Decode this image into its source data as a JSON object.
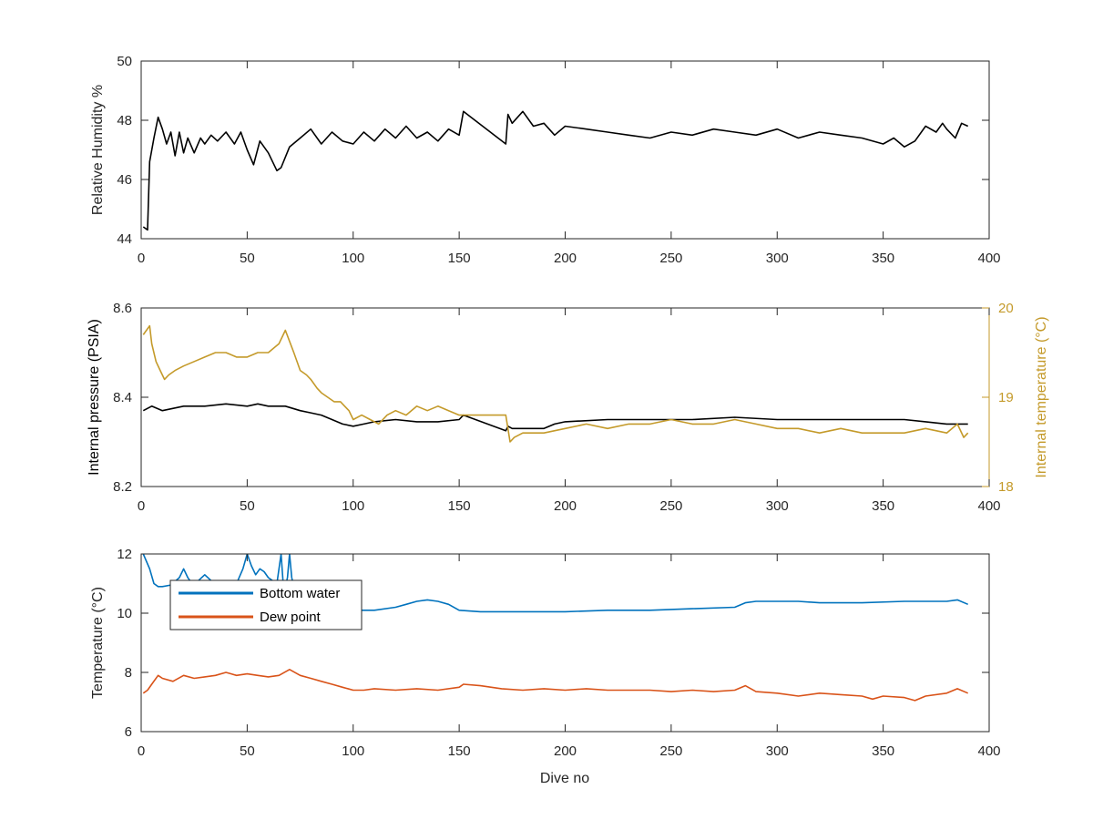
{
  "figure": {
    "background": "#ffffff",
    "axis_color": "#262626"
  },
  "chart_data": [
    {
      "type": "line",
      "ylabel": "Relative Humidity %",
      "xlim": [
        0,
        400
      ],
      "ylim": [
        44,
        50
      ],
      "xticks": [
        "0",
        "50",
        "100",
        "150",
        "200",
        "250",
        "300",
        "350",
        "400"
      ],
      "yticks": [
        "44",
        "46",
        "48",
        "50"
      ],
      "grid": false,
      "series": [
        {
          "color": "#000000",
          "x": [
            1,
            3,
            4,
            6,
            8,
            10,
            12,
            14,
            16,
            18,
            20,
            22,
            25,
            28,
            30,
            33,
            36,
            40,
            44,
            47,
            50,
            53,
            56,
            60,
            64,
            66,
            70,
            75,
            80,
            85,
            90,
            95,
            100,
            105,
            110,
            115,
            120,
            125,
            130,
            135,
            140,
            145,
            150,
            152,
            172,
            173,
            175,
            180,
            185,
            190,
            195,
            200,
            210,
            220,
            230,
            240,
            250,
            260,
            270,
            280,
            290,
            300,
            310,
            320,
            330,
            340,
            350,
            355,
            360,
            365,
            370,
            375,
            378,
            380,
            384,
            387,
            390
          ],
          "y": [
            44.4,
            44.3,
            46.6,
            47.4,
            48.1,
            47.7,
            47.2,
            47.6,
            46.8,
            47.6,
            46.9,
            47.4,
            46.9,
            47.4,
            47.2,
            47.5,
            47.3,
            47.6,
            47.2,
            47.6,
            47.0,
            46.5,
            47.3,
            46.9,
            46.3,
            46.4,
            47.1,
            47.4,
            47.7,
            47.2,
            47.6,
            47.3,
            47.2,
            47.6,
            47.3,
            47.7,
            47.4,
            47.8,
            47.4,
            47.6,
            47.3,
            47.7,
            47.5,
            48.3,
            47.2,
            48.2,
            47.9,
            48.3,
            47.8,
            47.9,
            47.5,
            47.8,
            47.7,
            47.6,
            47.5,
            47.4,
            47.6,
            47.5,
            47.7,
            47.6,
            47.5,
            47.7,
            47.4,
            47.6,
            47.5,
            47.4,
            47.2,
            47.4,
            47.1,
            47.3,
            47.8,
            47.6,
            47.9,
            47.7,
            47.4,
            47.9,
            47.8
          ]
        }
      ]
    },
    {
      "type": "line",
      "ylabel": "Internal pressure (PSIA)",
      "ylabel_right": "Internal temperature (°C)",
      "xlim": [
        0,
        400
      ],
      "ylim": [
        8.2,
        8.6
      ],
      "ylim_right": [
        18,
        20
      ],
      "xticks": [
        "0",
        "50",
        "100",
        "150",
        "200",
        "250",
        "300",
        "350",
        "400"
      ],
      "yticks": [
        "8.2",
        "8.4",
        "8.6"
      ],
      "yticks_right": [
        "18",
        "19",
        "20"
      ],
      "right_axis_color": "#c49a2a",
      "grid": false,
      "series": [
        {
          "axis": "left",
          "color": "#000000",
          "x": [
            1,
            5,
            10,
            20,
            30,
            40,
            50,
            55,
            60,
            68,
            75,
            80,
            85,
            90,
            95,
            100,
            105,
            110,
            120,
            130,
            140,
            150,
            152,
            172,
            173,
            175,
            180,
            190,
            195,
            200,
            220,
            240,
            260,
            280,
            300,
            320,
            340,
            360,
            370,
            380,
            390
          ],
          "y": [
            8.37,
            8.38,
            8.37,
            8.38,
            8.38,
            8.385,
            8.38,
            8.385,
            8.38,
            8.38,
            8.37,
            8.365,
            8.36,
            8.35,
            8.34,
            8.335,
            8.34,
            8.345,
            8.35,
            8.345,
            8.345,
            8.35,
            8.36,
            8.325,
            8.335,
            8.33,
            8.33,
            8.33,
            8.34,
            8.345,
            8.35,
            8.35,
            8.35,
            8.355,
            8.35,
            8.35,
            8.35,
            8.35,
            8.345,
            8.34,
            8.34
          ]
        },
        {
          "axis": "right",
          "color": "#c49a2a",
          "x": [
            1,
            4,
            5,
            7,
            9,
            11,
            13,
            16,
            20,
            25,
            30,
            35,
            40,
            45,
            50,
            55,
            60,
            65,
            68,
            72,
            75,
            78,
            80,
            83,
            85,
            88,
            91,
            94,
            96,
            98,
            100,
            104,
            108,
            112,
            116,
            120,
            125,
            130,
            135,
            140,
            145,
            150,
            152,
            172,
            174,
            176,
            180,
            185,
            190,
            200,
            210,
            220,
            230,
            240,
            250,
            260,
            270,
            280,
            290,
            300,
            310,
            320,
            330,
            340,
            350,
            360,
            370,
            380,
            385,
            388,
            390
          ],
          "y": [
            19.7,
            19.8,
            19.6,
            19.4,
            19.3,
            19.2,
            19.25,
            19.3,
            19.35,
            19.4,
            19.45,
            19.5,
            19.5,
            19.45,
            19.45,
            19.5,
            19.5,
            19.6,
            19.75,
            19.5,
            19.3,
            19.25,
            19.2,
            19.1,
            19.05,
            19.0,
            18.95,
            18.95,
            18.9,
            18.85,
            18.75,
            18.8,
            18.75,
            18.7,
            18.8,
            18.85,
            18.8,
            18.9,
            18.85,
            18.9,
            18.85,
            18.8,
            18.8,
            18.8,
            18.5,
            18.55,
            18.6,
            18.6,
            18.6,
            18.65,
            18.7,
            18.65,
            18.7,
            18.7,
            18.75,
            18.7,
            18.7,
            18.75,
            18.7,
            18.65,
            18.65,
            18.6,
            18.65,
            18.6,
            18.6,
            18.6,
            18.65,
            18.6,
            18.7,
            18.55,
            18.6
          ]
        }
      ]
    },
    {
      "type": "line",
      "xlabel": "Dive no",
      "ylabel": "Temperature (°C)",
      "xlim": [
        0,
        400
      ],
      "ylim": [
        6,
        12
      ],
      "xticks": [
        "0",
        "50",
        "100",
        "150",
        "200",
        "250",
        "300",
        "350",
        "400"
      ],
      "yticks": [
        "6",
        "8",
        "10",
        "12"
      ],
      "legend_position": "top-left",
      "grid": false,
      "series": [
        {
          "name": "Bottom water",
          "color": "#0072bd",
          "x": [
            1,
            4,
            6,
            8,
            10,
            14,
            18,
            20,
            22,
            24,
            27,
            30,
            33,
            36,
            40,
            45,
            48,
            50,
            52,
            54,
            56,
            58,
            60,
            62,
            64,
            66,
            67,
            68,
            69,
            70,
            71,
            72,
            75,
            80,
            85,
            90,
            95,
            100,
            110,
            120,
            125,
            130,
            135,
            140,
            145,
            150,
            160,
            170,
            180,
            190,
            200,
            220,
            240,
            260,
            280,
            285,
            290,
            300,
            310,
            320,
            340,
            360,
            380,
            385,
            390
          ],
          "y": [
            12.0,
            11.5,
            11.0,
            10.9,
            10.9,
            10.95,
            11.2,
            11.5,
            11.2,
            11.0,
            11.1,
            11.3,
            11.1,
            10.95,
            10.9,
            11.0,
            11.5,
            12.0,
            11.6,
            11.3,
            11.5,
            11.4,
            11.2,
            11.1,
            11.0,
            12.0,
            11.0,
            10.9,
            11.2,
            12.0,
            11.2,
            10.9,
            10.6,
            10.4,
            10.3,
            10.2,
            10.15,
            10.1,
            10.1,
            10.2,
            10.3,
            10.4,
            10.45,
            10.4,
            10.3,
            10.1,
            10.05,
            10.05,
            10.05,
            10.05,
            10.05,
            10.1,
            10.1,
            10.15,
            10.2,
            10.35,
            10.4,
            10.4,
            10.4,
            10.35,
            10.35,
            10.4,
            10.4,
            10.45,
            10.3
          ]
        },
        {
          "name": "Dew point",
          "color": "#d95319",
          "x": [
            1,
            3,
            5,
            8,
            10,
            15,
            20,
            25,
            30,
            35,
            40,
            45,
            50,
            55,
            60,
            65,
            70,
            75,
            80,
            85,
            90,
            95,
            100,
            105,
            110,
            120,
            130,
            140,
            150,
            152,
            160,
            170,
            180,
            190,
            200,
            210,
            220,
            230,
            240,
            250,
            260,
            270,
            280,
            285,
            290,
            300,
            310,
            320,
            330,
            340,
            345,
            350,
            360,
            365,
            370,
            380,
            385,
            390
          ],
          "y": [
            7.3,
            7.4,
            7.6,
            7.9,
            7.8,
            7.7,
            7.9,
            7.8,
            7.85,
            7.9,
            8.0,
            7.9,
            7.95,
            7.9,
            7.85,
            7.9,
            8.1,
            7.9,
            7.8,
            7.7,
            7.6,
            7.5,
            7.4,
            7.4,
            7.45,
            7.4,
            7.45,
            7.4,
            7.5,
            7.6,
            7.55,
            7.45,
            7.4,
            7.45,
            7.4,
            7.45,
            7.4,
            7.4,
            7.4,
            7.35,
            7.4,
            7.35,
            7.4,
            7.55,
            7.35,
            7.3,
            7.2,
            7.3,
            7.25,
            7.2,
            7.1,
            7.2,
            7.15,
            7.05,
            7.2,
            7.3,
            7.45,
            7.3
          ]
        }
      ]
    }
  ]
}
